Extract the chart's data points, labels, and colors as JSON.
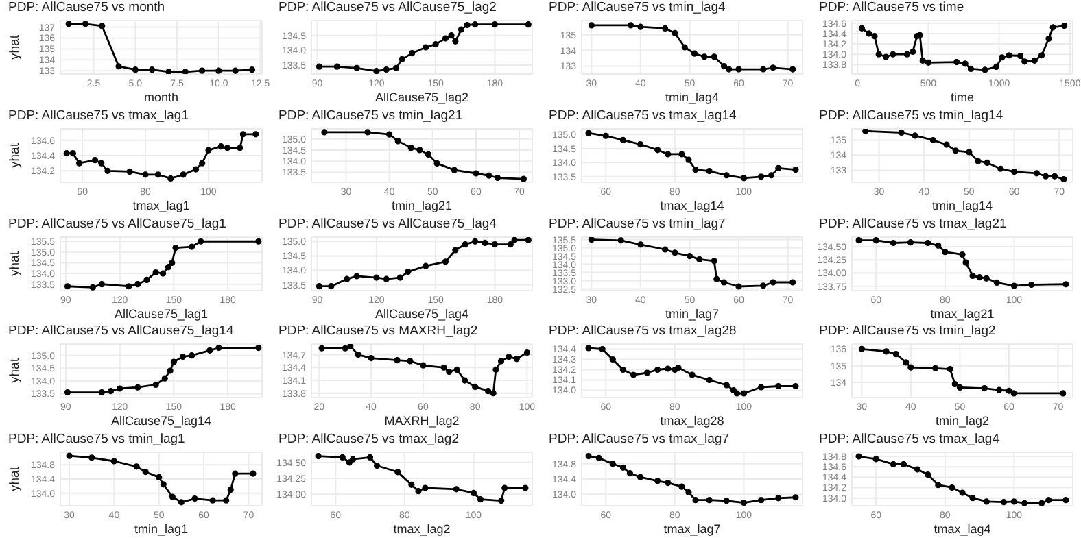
{
  "chart_data": [
    {
      "type": "line",
      "title": "PDP: AllCause75 vs month",
      "xlabel": "month",
      "ylabel": "yhat",
      "color": "#000000",
      "marker": "circle",
      "line_style": "solid",
      "grid": true,
      "legend": false,
      "x": [
        1,
        2,
        3,
        4,
        5,
        6,
        7,
        8,
        9,
        10,
        11,
        12
      ],
      "values": [
        137.3,
        137.3,
        137.1,
        133.4,
        133.1,
        133.1,
        132.9,
        132.9,
        133.0,
        133.0,
        133.0,
        133.1
      ],
      "xlim": [
        0.5,
        12.6
      ],
      "xticks": [
        2.5,
        {
          "value": 5,
          "label": "5.0"
        },
        7.5,
        {
          "value": 10,
          "label": "10.0"
        },
        12.5
      ],
      "ylim": [
        132.7,
        137.6
      ],
      "yticks": [
        133,
        134,
        135,
        136,
        137
      ]
    },
    {
      "type": "line",
      "title": "PDP: AllCause75 vs AllCause75_lag2",
      "xlabel": "AllCause75_lag2",
      "color": "#000000",
      "marker": "circle",
      "line_style": "solid",
      "grid": true,
      "legend": false,
      "x": [
        91,
        100,
        110,
        120,
        125,
        130,
        133,
        138,
        145,
        150,
        155,
        158,
        160,
        163,
        166,
        170,
        180,
        197
      ],
      "values": [
        133.45,
        133.45,
        133.4,
        133.3,
        133.35,
        133.4,
        133.7,
        133.9,
        134.1,
        134.2,
        134.4,
        134.5,
        134.3,
        134.7,
        134.85,
        134.87,
        134.87,
        134.87
      ],
      "xlim": [
        87,
        199
      ],
      "xticks": [
        90,
        120,
        150,
        180
      ],
      "ylim": [
        133.2,
        135.0
      ],
      "yticks": [
        133.5,
        {
          "value": 134,
          "label": "134.0"
        },
        134.5
      ]
    },
    {
      "type": "line",
      "title": "PDP: AllCause75 vs tmin_lag4",
      "xlabel": "tmin_lag4",
      "color": "#000000",
      "marker": "circle",
      "line_style": "solid",
      "grid": true,
      "legend": false,
      "x": [
        30,
        38,
        40,
        45,
        47,
        49,
        51,
        53,
        55,
        57,
        58,
        60,
        65,
        67,
        71
      ],
      "values": [
        135.6,
        135.6,
        135.5,
        135.4,
        135.1,
        134.2,
        133.8,
        133.6,
        133.6,
        133.0,
        132.8,
        132.8,
        132.8,
        132.9,
        132.8
      ],
      "xlim": [
        28,
        73
      ],
      "xticks": [
        30,
        40,
        50,
        60,
        70
      ],
      "ylim": [
        132.5,
        135.9
      ],
      "yticks": [
        133,
        134,
        135
      ]
    },
    {
      "type": "line",
      "title": "PDP: AllCause75 vs time",
      "xlabel": "time",
      "color": "#000000",
      "marker": "circle",
      "line_style": "solid",
      "grid": true,
      "legend": false,
      "x": [
        30,
        80,
        120,
        150,
        200,
        250,
        350,
        390,
        420,
        440,
        460,
        500,
        700,
        760,
        800,
        900,
        980,
        1020,
        1070,
        1150,
        1180,
        1250,
        1300,
        1350,
        1380,
        1460
      ],
      "values": [
        134.5,
        134.4,
        134.35,
        134.0,
        133.95,
        134.0,
        134.0,
        134.05,
        134.35,
        134.37,
        133.88,
        133.84,
        133.85,
        133.82,
        133.72,
        133.7,
        133.76,
        133.94,
        133.98,
        133.97,
        133.86,
        133.88,
        133.98,
        134.3,
        134.52,
        134.55
      ],
      "xlim": [
        -40,
        1520
      ],
      "xticks": [
        0,
        500,
        1000,
        1500
      ],
      "ylim": [
        133.62,
        134.65
      ],
      "yticks": [
        133.8,
        {
          "value": 134,
          "label": "134.0"
        },
        134.2,
        134.4,
        134.6
      ]
    },
    {
      "type": "line",
      "title": "PDP: AllCause75 vs tmax_lag1",
      "xlabel": "tmax_lag1",
      "ylabel": "yhat",
      "color": "#000000",
      "marker": "circle",
      "line_style": "solid",
      "grid": true,
      "legend": false,
      "x": [
        55,
        57,
        59,
        64,
        66,
        68,
        75,
        80,
        84,
        88,
        92,
        96,
        98,
        100,
        104,
        106,
        110,
        111,
        115
      ],
      "values": [
        134.43,
        134.43,
        134.3,
        134.34,
        134.3,
        134.2,
        134.19,
        134.15,
        134.15,
        134.1,
        134.15,
        134.22,
        134.3,
        134.47,
        134.52,
        134.5,
        134.5,
        134.68,
        134.68
      ],
      "xlim": [
        53,
        117
      ],
      "xticks": [
        60,
        80,
        100
      ],
      "ylim": [
        134.05,
        134.75
      ],
      "yticks": [
        134.2,
        134.4,
        134.6
      ]
    },
    {
      "type": "line",
      "title": "PDP: AllCause75 vs tmin_lag21",
      "xlabel": "tmin_lag21",
      "color": "#000000",
      "marker": "circle",
      "line_style": "solid",
      "grid": true,
      "legend": false,
      "x": [
        25,
        35,
        40,
        42,
        45,
        47,
        49,
        51,
        55,
        60,
        63,
        65,
        71
      ],
      "values": [
        135.3,
        135.3,
        135.2,
        134.9,
        134.6,
        134.5,
        134.3,
        133.9,
        133.6,
        133.45,
        133.35,
        133.25,
        133.2
      ],
      "xlim": [
        22,
        73
      ],
      "xticks": [
        30,
        40,
        50,
        60,
        70
      ],
      "ylim": [
        133.05,
        135.45
      ],
      "yticks": [
        133.5,
        {
          "value": 134,
          "label": "134.0"
        },
        134.5,
        {
          "value": 135,
          "label": "135.0"
        }
      ]
    },
    {
      "type": "line",
      "title": "PDP: AllCause75 vs tmax_lag14",
      "xlabel": "tmax_lag14",
      "color": "#000000",
      "marker": "circle",
      "line_style": "solid",
      "grid": true,
      "legend": false,
      "x": [
        55,
        60,
        65,
        70,
        75,
        78,
        82,
        84,
        86,
        90,
        95,
        100,
        105,
        108,
        110,
        115
      ],
      "values": [
        135.05,
        134.95,
        134.8,
        134.65,
        134.45,
        134.3,
        134.3,
        134.1,
        133.75,
        133.7,
        133.55,
        133.45,
        133.5,
        133.55,
        133.8,
        133.75
      ],
      "xlim": [
        53,
        117
      ],
      "xticks": [
        60,
        80,
        100
      ],
      "ylim": [
        133.3,
        135.2
      ],
      "yticks": [
        133.5,
        {
          "value": 134,
          "label": "134.0"
        },
        134.5,
        {
          "value": 135,
          "label": "135.0"
        }
      ]
    },
    {
      "type": "line",
      "title": "PDP: AllCause75 vs tmin_lag14",
      "xlabel": "tmin_lag14",
      "color": "#000000",
      "marker": "circle",
      "line_style": "solid",
      "grid": true,
      "legend": false,
      "x": [
        27,
        35,
        38,
        42,
        45,
        47,
        50,
        52,
        54,
        57,
        60,
        65,
        67,
        69,
        71
      ],
      "values": [
        135.6,
        135.5,
        135.3,
        135.0,
        134.7,
        134.3,
        134.2,
        133.6,
        133.5,
        133.1,
        132.9,
        132.8,
        132.6,
        132.6,
        132.4
      ],
      "xlim": [
        24,
        73
      ],
      "xticks": [
        30,
        40,
        50,
        60,
        70
      ],
      "ylim": [
        132.2,
        135.75
      ],
      "yticks": [
        133,
        134,
        135
      ]
    },
    {
      "type": "line",
      "title": "PDP: AllCause75 vs AllCause75_lag1",
      "xlabel": "AllCause75_lag1",
      "ylabel": "yhat",
      "color": "#000000",
      "marker": "circle",
      "line_style": "solid",
      "grid": true,
      "legend": false,
      "x": [
        91,
        105,
        110,
        125,
        130,
        135,
        140,
        144,
        147,
        149,
        151,
        160,
        165,
        197
      ],
      "values": [
        133.4,
        133.35,
        133.5,
        133.4,
        133.5,
        133.7,
        134.05,
        134.0,
        134.3,
        134.5,
        135.2,
        135.25,
        135.5,
        135.5
      ],
      "xlim": [
        87,
        199
      ],
      "xticks": [
        90,
        120,
        150,
        180
      ],
      "ylim": [
        133.2,
        135.7
      ],
      "yticks": [
        133.5,
        {
          "value": 134,
          "label": "134.0"
        },
        134.5,
        {
          "value": 135,
          "label": "135.0"
        },
        135.5
      ]
    },
    {
      "type": "line",
      "title": "PDP: AllCause75 vs AllCause75_lag4",
      "xlabel": "AllCause75_lag4",
      "color": "#000000",
      "marker": "circle",
      "line_style": "solid",
      "grid": true,
      "legend": false,
      "x": [
        91,
        97,
        105,
        110,
        120,
        125,
        132,
        136,
        145,
        155,
        160,
        165,
        170,
        175,
        180,
        188,
        190,
        197
      ],
      "values": [
        133.45,
        133.45,
        133.7,
        133.8,
        133.75,
        133.7,
        133.75,
        133.95,
        134.15,
        134.3,
        134.7,
        134.9,
        135.0,
        134.95,
        134.9,
        134.9,
        135.05,
        135.05
      ],
      "xlim": [
        87,
        199
      ],
      "xticks": [
        90,
        120,
        150,
        180
      ],
      "ylim": [
        133.3,
        135.15
      ],
      "yticks": [
        133.5,
        {
          "value": 134,
          "label": "134.0"
        },
        134.5,
        {
          "value": 135,
          "label": "135.0"
        }
      ]
    },
    {
      "type": "line",
      "title": "PDP: AllCause75 vs tmin_lag7",
      "xlabel": "tmin_lag7",
      "color": "#000000",
      "marker": "circle",
      "line_style": "solid",
      "grid": true,
      "legend": false,
      "x": [
        30,
        36,
        40,
        45,
        47,
        50,
        52,
        55,
        55.5,
        57,
        60,
        65,
        67,
        71
      ],
      "values": [
        135.5,
        135.45,
        135.2,
        134.9,
        134.7,
        134.5,
        134.3,
        134.2,
        133.1,
        132.9,
        132.65,
        132.7,
        132.9,
        132.9
      ],
      "xlim": [
        28,
        73
      ],
      "xticks": [
        30,
        40,
        50,
        60,
        70
      ],
      "ylim": [
        132.4,
        135.65
      ],
      "yticks": [
        132.5,
        {
          "value": 133,
          "label": "133.0"
        },
        133.5,
        {
          "value": 134,
          "label": "134.0"
        },
        134.5,
        {
          "value": 135,
          "label": "135.0"
        },
        135.5
      ]
    },
    {
      "type": "line",
      "title": "PDP: AllCause75 vs tmax_lag21",
      "xlabel": "tmax_lag21",
      "color": "#000000",
      "marker": "circle",
      "line_style": "solid",
      "grid": true,
      "legend": false,
      "x": [
        55,
        60,
        65,
        70,
        75,
        78,
        80,
        85,
        86,
        88,
        90,
        92,
        95,
        100,
        105,
        115
      ],
      "values": [
        134.62,
        134.62,
        134.57,
        134.58,
        134.57,
        134.52,
        134.4,
        134.35,
        134.2,
        133.95,
        133.92,
        133.9,
        133.82,
        133.76,
        133.78,
        133.79
      ],
      "xlim": [
        53,
        117
      ],
      "xticks": [
        60,
        80,
        100
      ],
      "ylim": [
        133.67,
        134.68
      ],
      "yticks": [
        133.75,
        {
          "value": 134,
          "label": "134.00"
        },
        134.25,
        {
          "value": 134.5,
          "label": "134.50"
        }
      ]
    },
    {
      "type": "line",
      "title": "PDP: AllCause75 vs AllCause75_lag14",
      "xlabel": "AllCause75_lag14",
      "ylabel": "yhat",
      "color": "#000000",
      "marker": "circle",
      "line_style": "solid",
      "grid": true,
      "legend": false,
      "x": [
        91,
        110,
        115,
        120,
        130,
        140,
        145,
        148,
        150,
        155,
        160,
        170,
        175,
        197
      ],
      "values": [
        133.55,
        133.55,
        133.6,
        133.7,
        133.75,
        133.85,
        134.1,
        134.4,
        134.75,
        134.95,
        135.0,
        135.2,
        135.3,
        135.3
      ],
      "xlim": [
        87,
        199
      ],
      "xticks": [
        90,
        120,
        150,
        180
      ],
      "ylim": [
        133.35,
        135.45
      ],
      "yticks": [
        133.5,
        {
          "value": 134,
          "label": "134.0"
        },
        134.5,
        {
          "value": 135,
          "label": "135.0"
        }
      ]
    },
    {
      "type": "line",
      "title": "PDP: AllCause75 vs MAXRH_lag2",
      "xlabel": "MAXRH_lag2",
      "color": "#000000",
      "marker": "circle",
      "line_style": "solid",
      "grid": true,
      "legend": false,
      "x": [
        21,
        30,
        32,
        35,
        40,
        50,
        55,
        60,
        68,
        70,
        73,
        76,
        80,
        85,
        87,
        88,
        90,
        93,
        96,
        100
      ],
      "values": [
        134.85,
        134.85,
        134.9,
        134.7,
        134.62,
        134.57,
        134.55,
        134.45,
        134.4,
        134.3,
        134.35,
        134.1,
        133.95,
        133.85,
        133.8,
        134.35,
        134.55,
        134.65,
        134.6,
        134.75
      ],
      "xlim": [
        17,
        102
      ],
      "xticks": [
        20,
        40,
        60,
        80,
        100
      ],
      "ylim": [
        133.7,
        134.95
      ],
      "yticks": [
        133.8,
        134.1,
        134.4,
        134.7
      ]
    },
    {
      "type": "line",
      "title": "PDP: AllCause75 vs tmax_lag28",
      "xlabel": "tmax_lag28",
      "color": "#000000",
      "marker": "circle",
      "line_style": "solid",
      "grid": true,
      "legend": false,
      "x": [
        55,
        59,
        62,
        65,
        68,
        72,
        75,
        78,
        80,
        81,
        85,
        90,
        95,
        97,
        98,
        100,
        105,
        110,
        115
      ],
      "values": [
        134.41,
        134.4,
        134.3,
        134.2,
        134.15,
        134.17,
        134.2,
        134.21,
        134.2,
        134.22,
        134.15,
        134.1,
        134.05,
        134.0,
        133.97,
        133.97,
        134.03,
        134.04,
        134.04
      ],
      "xlim": [
        53,
        117
      ],
      "xticks": [
        60,
        80,
        100
      ],
      "ylim": [
        133.93,
        134.45
      ],
      "yticks": [
        {
          "value": 134,
          "label": "134.0"
        },
        134.1,
        134.2,
        134.3,
        134.4
      ]
    },
    {
      "type": "line",
      "title": "PDP: AllCause75 vs tmin_lag2",
      "xlabel": "tmin_lag2",
      "color": "#000000",
      "marker": "circle",
      "line_style": "solid",
      "grid": true,
      "legend": false,
      "x": [
        30,
        35,
        37,
        39,
        40,
        45,
        48,
        49,
        50,
        55,
        58,
        60,
        61,
        71
      ],
      "values": [
        136.0,
        135.85,
        135.7,
        135.2,
        134.9,
        134.85,
        134.8,
        133.9,
        133.7,
        133.65,
        133.55,
        133.5,
        133.35,
        133.35
      ],
      "xlim": [
        28,
        73
      ],
      "xticks": [
        30,
        40,
        50,
        60,
        70
      ],
      "ylim": [
        133.1,
        136.3
      ],
      "yticks": [
        134,
        135,
        136
      ]
    },
    {
      "type": "line",
      "title": "PDP: AllCause75 vs tmin_lag1",
      "xlabel": "tmin_lag1",
      "ylabel": "yhat",
      "color": "#000000",
      "marker": "circle",
      "line_style": "solid",
      "grid": true,
      "legend": false,
      "x": [
        30,
        35,
        40,
        45,
        47,
        50,
        51,
        53,
        55,
        58,
        62,
        65,
        66,
        67,
        71
      ],
      "values": [
        135.05,
        135.0,
        134.9,
        134.75,
        134.6,
        134.45,
        134.25,
        133.9,
        133.75,
        133.85,
        133.8,
        133.8,
        134.1,
        134.55,
        134.55
      ],
      "xlim": [
        28,
        73
      ],
      "xticks": [
        30,
        40,
        50,
        60,
        70
      ],
      "ylim": [
        133.65,
        135.15
      ],
      "yticks": [
        {
          "value": 134,
          "label": "134.0"
        },
        134.4,
        134.8
      ]
    },
    {
      "type": "line",
      "title": "PDP: AllCause75 vs tmax_lag2",
      "xlabel": "tmax_lag2",
      "color": "#000000",
      "marker": "circle",
      "line_style": "solid",
      "grid": true,
      "legend": false,
      "x": [
        55,
        62,
        64,
        65,
        70,
        72,
        78,
        82,
        84,
        86,
        95,
        100,
        102,
        108,
        109,
        115
      ],
      "values": [
        134.6,
        134.58,
        134.5,
        134.55,
        134.58,
        134.45,
        134.35,
        134.15,
        134.05,
        134.1,
        134.08,
        134.02,
        133.92,
        133.9,
        134.1,
        134.1
      ],
      "xlim": [
        53,
        117
      ],
      "xticks": [
        60,
        80,
        100
      ],
      "ylim": [
        133.82,
        134.66
      ],
      "yticks": [
        {
          "value": 134,
          "label": "134.00"
        },
        134.25,
        {
          "value": 134.5,
          "label": "134.50"
        }
      ]
    },
    {
      "type": "line",
      "title": "PDP: AllCause75 vs tmax_lag7",
      "xlabel": "tmax_lag7",
      "color": "#000000",
      "marker": "circle",
      "line_style": "solid",
      "grid": true,
      "legend": false,
      "x": [
        55,
        58,
        62,
        65,
        67,
        70,
        75,
        78,
        82,
        84,
        86,
        90,
        95,
        100,
        105,
        110,
        115
      ],
      "values": [
        135.0,
        134.95,
        134.8,
        134.7,
        134.55,
        134.45,
        134.35,
        134.3,
        134.2,
        134.05,
        133.85,
        133.85,
        133.83,
        133.78,
        133.85,
        133.9,
        133.92
      ],
      "xlim": [
        53,
        117
      ],
      "xticks": [
        60,
        80,
        100
      ],
      "ylim": [
        133.7,
        135.1
      ],
      "yticks": [
        {
          "value": 134,
          "label": "134.0"
        },
        134.4,
        134.8
      ]
    },
    {
      "type": "line",
      "title": "PDP: AllCause75 vs tmax_lag4",
      "xlabel": "tmax_lag4",
      "color": "#000000",
      "marker": "circle",
      "line_style": "solid",
      "grid": true,
      "legend": false,
      "x": [
        55,
        60,
        65,
        68,
        72,
        75,
        78,
        82,
        85,
        88,
        92,
        97,
        100,
        103,
        108,
        110,
        115
      ],
      "values": [
        134.8,
        134.75,
        134.65,
        134.65,
        134.55,
        134.45,
        134.25,
        134.2,
        134.1,
        134.0,
        133.93,
        133.92,
        133.93,
        133.9,
        133.9,
        133.96,
        133.96
      ],
      "xlim": [
        53,
        117
      ],
      "xticks": [
        60,
        80,
        100
      ],
      "ylim": [
        133.85,
        134.88
      ],
      "yticks": [
        {
          "value": 134,
          "label": "134.0"
        },
        134.2,
        134.4,
        134.6,
        134.8
      ]
    }
  ]
}
